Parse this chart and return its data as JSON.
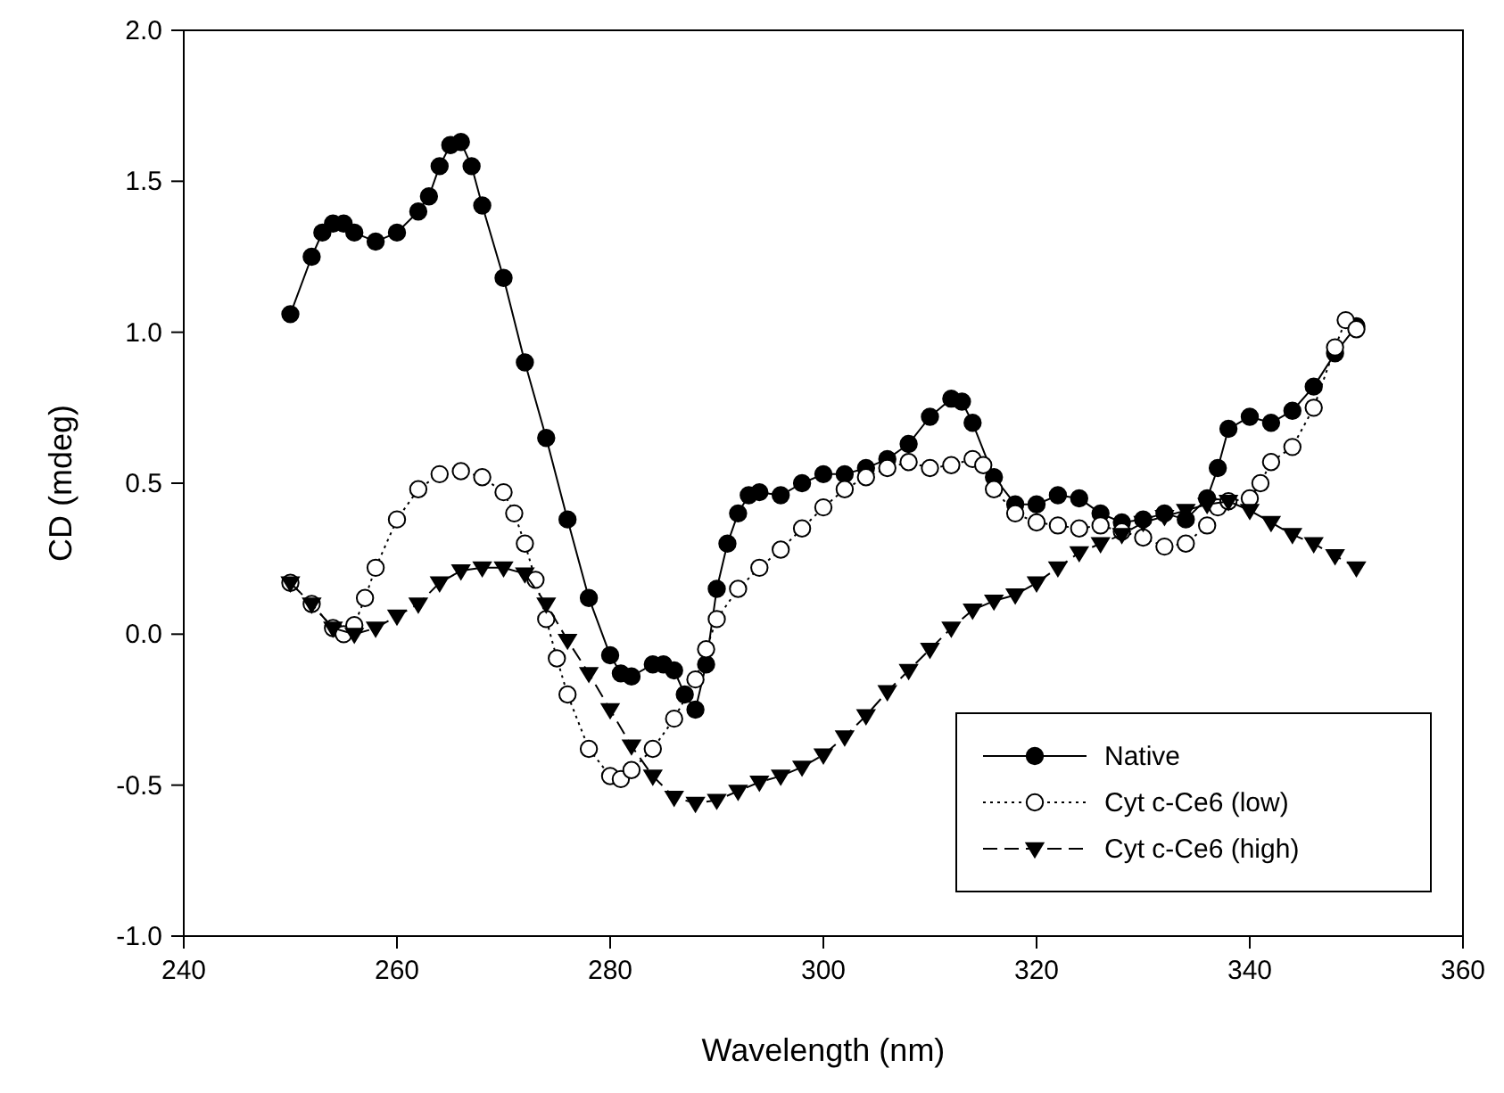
{
  "chart_data": {
    "type": "line",
    "xlabel": "Wavelength (nm)",
    "ylabel": "CD (mdeg)",
    "xlim": [
      240,
      360
    ],
    "xticks": [
      240,
      260,
      280,
      300,
      320,
      340,
      360
    ],
    "ylim": [
      -1,
      2
    ],
    "yticks": [
      {
        "value": -1,
        "label": "-1.0"
      },
      {
        "value": -0.5,
        "label": "-0.5"
      },
      {
        "value": 0,
        "label": "0.0"
      },
      {
        "value": 0.5,
        "label": "0.5"
      },
      {
        "value": 1,
        "label": "1.0"
      },
      {
        "value": 1.5,
        "label": "1.5"
      },
      {
        "value": 2,
        "label": "2.0"
      }
    ],
    "legend": "bottom right",
    "grid": false,
    "series": [
      {
        "name": "Native",
        "color": "#000000",
        "marker": "circle",
        "line_style": "solid",
        "x": [
          250,
          252,
          253,
          254,
          255,
          256,
          258,
          260,
          262,
          263,
          264,
          265,
          266,
          267,
          268,
          270,
          272,
          274,
          276,
          278,
          280,
          281,
          282,
          284,
          285,
          286,
          287,
          288,
          289,
          290,
          291,
          292,
          293,
          294,
          296,
          298,
          300,
          302,
          304,
          306,
          308,
          310,
          312,
          313,
          314,
          316,
          318,
          320,
          322,
          324,
          326,
          328,
          330,
          332,
          334,
          336,
          337,
          338,
          340,
          342,
          344,
          346,
          348,
          350
        ],
        "values": [
          1.06,
          1.25,
          1.33,
          1.36,
          1.36,
          1.33,
          1.3,
          1.33,
          1.4,
          1.45,
          1.55,
          1.62,
          1.63,
          1.55,
          1.42,
          1.18,
          0.9,
          0.65,
          0.38,
          0.12,
          -0.07,
          -0.13,
          -0.14,
          -0.1,
          -0.1,
          -0.12,
          -0.2,
          -0.25,
          -0.1,
          0.15,
          0.3,
          0.4,
          0.46,
          0.47,
          0.46,
          0.5,
          0.53,
          0.53,
          0.55,
          0.58,
          0.63,
          0.72,
          0.78,
          0.77,
          0.7,
          0.52,
          0.43,
          0.43,
          0.46,
          0.45,
          0.4,
          0.37,
          0.38,
          0.4,
          0.38,
          0.45,
          0.55,
          0.68,
          0.72,
          0.7,
          0.74,
          0.82,
          0.93,
          1.02
        ]
      },
      {
        "name": "Cyt c-Ce6 (low)",
        "color": "#000000",
        "marker": "open circle",
        "line_style": "dotted",
        "x": [
          250,
          252,
          254,
          255,
          256,
          257,
          258,
          260,
          262,
          264,
          266,
          268,
          270,
          271,
          272,
          273,
          274,
          275,
          276,
          278,
          280,
          281,
          282,
          284,
          286,
          288,
          289,
          290,
          292,
          294,
          296,
          298,
          300,
          302,
          304,
          306,
          308,
          310,
          312,
          314,
          315,
          316,
          318,
          320,
          322,
          324,
          326,
          328,
          330,
          332,
          334,
          336,
          337,
          338,
          340,
          341,
          342,
          344,
          346,
          348,
          349,
          350
        ],
        "values": [
          0.17,
          0.1,
          0.02,
          0.0,
          0.03,
          0.12,
          0.22,
          0.38,
          0.48,
          0.53,
          0.54,
          0.52,
          0.47,
          0.4,
          0.3,
          0.18,
          0.05,
          -0.08,
          -0.2,
          -0.38,
          -0.47,
          -0.48,
          -0.45,
          -0.38,
          -0.28,
          -0.15,
          -0.05,
          0.05,
          0.15,
          0.22,
          0.28,
          0.35,
          0.42,
          0.48,
          0.52,
          0.55,
          0.57,
          0.55,
          0.56,
          0.58,
          0.56,
          0.48,
          0.4,
          0.37,
          0.36,
          0.35,
          0.36,
          0.34,
          0.32,
          0.29,
          0.3,
          0.36,
          0.42,
          0.44,
          0.45,
          0.5,
          0.57,
          0.62,
          0.75,
          0.95,
          1.04,
          1.01
        ]
      },
      {
        "name": "Cyt c-Ce6 (high)",
        "color": "#000000",
        "marker": "triangle",
        "line_style": "dashed",
        "x": [
          250,
          252,
          254,
          256,
          258,
          260,
          262,
          264,
          266,
          268,
          270,
          272,
          274,
          276,
          278,
          280,
          282,
          284,
          286,
          288,
          290,
          292,
          294,
          296,
          298,
          300,
          302,
          304,
          306,
          308,
          310,
          312,
          314,
          316,
          318,
          320,
          322,
          324,
          326,
          328,
          330,
          332,
          334,
          336,
          338,
          340,
          342,
          344,
          346,
          348,
          350
        ],
        "values": [
          0.17,
          0.1,
          0.02,
          0.0,
          0.02,
          0.06,
          0.1,
          0.17,
          0.21,
          0.22,
          0.22,
          0.2,
          0.1,
          -0.02,
          -0.13,
          -0.25,
          -0.37,
          -0.47,
          -0.54,
          -0.56,
          -0.55,
          -0.52,
          -0.49,
          -0.47,
          -0.44,
          -0.4,
          -0.34,
          -0.27,
          -0.19,
          -0.12,
          -0.05,
          0.02,
          0.08,
          0.11,
          0.13,
          0.17,
          0.22,
          0.27,
          0.3,
          0.33,
          0.37,
          0.39,
          0.41,
          0.43,
          0.44,
          0.41,
          0.37,
          0.33,
          0.3,
          0.26,
          0.22
        ]
      }
    ]
  }
}
